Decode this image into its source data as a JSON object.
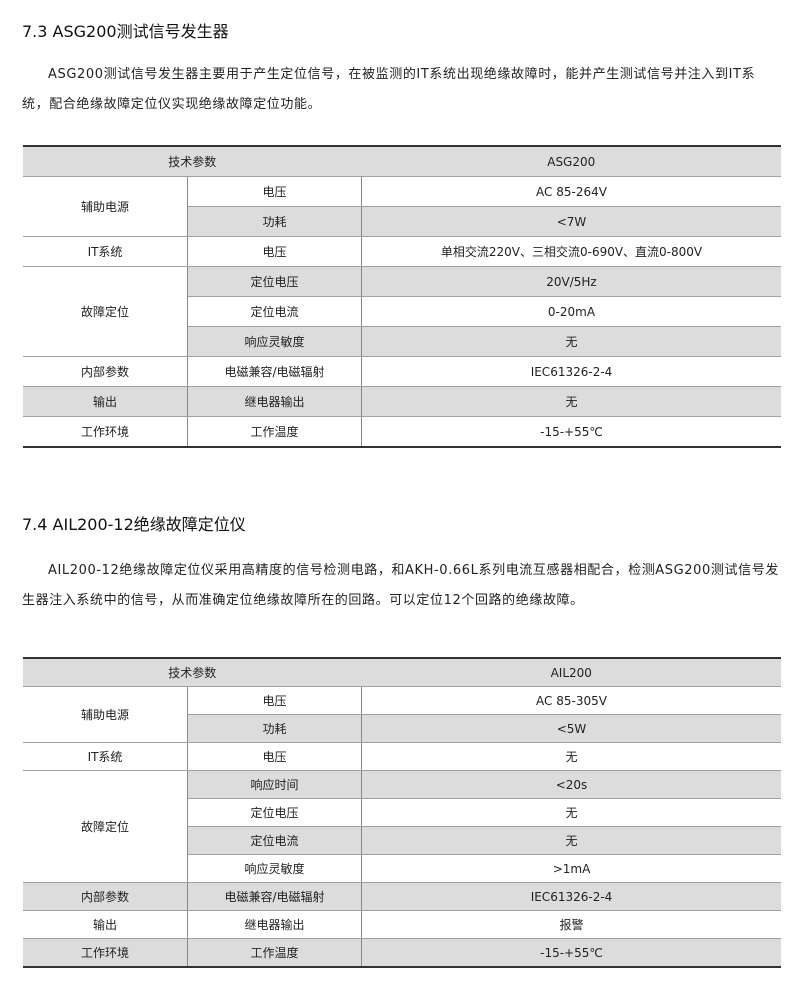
{
  "section1": {
    "heading": "7.3 ASG200测试信号发生器",
    "paragraph": "ASG200测试信号发生器主要用于产生定位信号，在被监测的IT系统出现绝缘故障时，能并产生测试信号并注入到IT系统，配合绝缘故障定位仪实现绝缘故障定位功能。",
    "table": {
      "header": [
        "技术参数",
        "ASG200"
      ],
      "groups": [
        "辅助电源",
        "IT系统",
        "故障定位",
        "内部参数",
        "输出",
        "工作环境"
      ],
      "rows": [
        [
          "电压",
          "AC 85-264V"
        ],
        [
          "功耗",
          "<7W"
        ],
        [
          "电压",
          "单相交流220V、三相交流0-690V、直流0-800V"
        ],
        [
          "定位电压",
          "20V/5Hz"
        ],
        [
          "定位电流",
          "0-20mA"
        ],
        [
          "响应灵敏度",
          "无"
        ],
        [
          "电磁兼容/电磁辐射",
          "IEC61326-2-4"
        ],
        [
          "继电器输出",
          "无"
        ],
        [
          "工作温度",
          "-15-+55℃"
        ]
      ]
    }
  },
  "section2": {
    "heading": "7.4 AIL200-12绝缘故障定位仪",
    "paragraph": "AIL200-12绝缘故障定位仪采用高精度的信号检测电路，和AKH-0.66L系列电流互感器相配合，检测ASG200测试信号发生器注入系统中的信号，从而准确定位绝缘故障所在的回路。可以定位12个回路的绝缘故障。",
    "table": {
      "header": [
        "技术参数",
        "AIL200"
      ],
      "groups": [
        "辅助电源",
        "IT系统",
        "故障定位",
        "内部参数",
        "输出",
        "工作环境"
      ],
      "rows": [
        [
          "电压",
          "AC 85-305V"
        ],
        [
          "功耗",
          "<5W"
        ],
        [
          "电压",
          "无"
        ],
        [
          "响应时间",
          "<20s"
        ],
        [
          "定位电压",
          "无"
        ],
        [
          "定位电流",
          "无"
        ],
        [
          "响应灵敏度",
          ">1mA"
        ],
        [
          "电磁兼容/电磁辐射",
          "IEC61326-2-4"
        ],
        [
          "继电器输出",
          "报警"
        ],
        [
          "工作温度",
          "-15-+55℃"
        ]
      ]
    }
  },
  "colors": {
    "row_shade": "#dcdcdc",
    "rule": "#333333"
  }
}
